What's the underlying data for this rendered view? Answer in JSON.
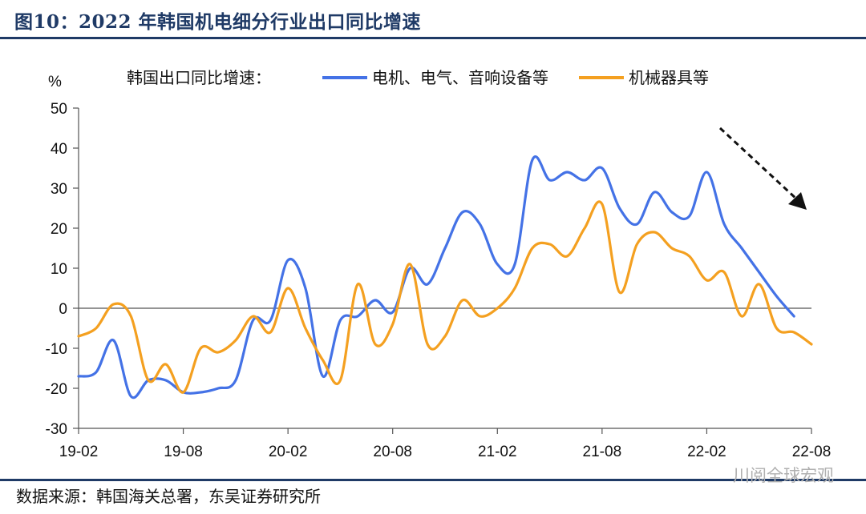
{
  "header": {
    "title": "图10：2022 年韩国机电细分行业出口同比增速"
  },
  "footer": {
    "source": "数据来源：韩国海关总署，东吴证券研究所",
    "watermark": "川阅全球宏观"
  },
  "chart_data": {
    "type": "line",
    "ylabel": "%",
    "legend_title": "韩国出口同比增速：",
    "legend_position": "top",
    "ylim": [
      -30,
      50
    ],
    "yticks": [
      -30,
      -20,
      -10,
      0,
      10,
      20,
      30,
      40,
      50
    ],
    "xtick_labels": [
      "19-02",
      "19-08",
      "20-02",
      "20-08",
      "21-02",
      "21-08",
      "22-02",
      "22-08"
    ],
    "x": [
      "19-02",
      "19-03",
      "19-04",
      "19-05",
      "19-06",
      "19-07",
      "19-08",
      "19-09",
      "19-10",
      "19-11",
      "19-12",
      "20-01",
      "20-02",
      "20-03",
      "20-04",
      "20-05",
      "20-06",
      "20-07",
      "20-08",
      "20-09",
      "20-10",
      "20-11",
      "20-12",
      "21-01",
      "21-02",
      "21-03",
      "21-04",
      "21-05",
      "21-06",
      "21-07",
      "21-08",
      "21-09",
      "21-10",
      "21-11",
      "21-12",
      "22-01",
      "22-02",
      "22-03",
      "22-04",
      "22-05",
      "22-06",
      "22-07",
      "22-08"
    ],
    "series": [
      {
        "name": "电机、电气、音响设备等",
        "color": "#4472e6",
        "values": [
          -17,
          -16,
          -8,
          -22,
          -18,
          -18,
          -21,
          -21,
          -20,
          -18,
          -3,
          -3,
          12,
          5,
          -17,
          -3,
          -2,
          2,
          -1,
          10,
          6,
          15,
          24,
          21,
          11,
          11,
          37,
          32,
          34,
          32,
          35,
          25,
          21,
          29,
          24,
          23,
          34,
          21,
          15,
          9,
          3,
          -2,
          null
        ]
      },
      {
        "name": "机械器具等",
        "color": "#f4a020",
        "values": [
          -7,
          -5,
          1,
          -2,
          -18,
          -14,
          -21,
          -10,
          -11,
          -8,
          -2,
          -6,
          5,
          -5,
          -13,
          -18,
          6,
          -9,
          -4,
          11,
          -9,
          -7,
          2,
          -2,
          0,
          5,
          15,
          16,
          13,
          20,
          26,
          4,
          16,
          19,
          15,
          13,
          7,
          9,
          -2,
          6,
          -5,
          -6,
          -9
        ]
      }
    ]
  }
}
